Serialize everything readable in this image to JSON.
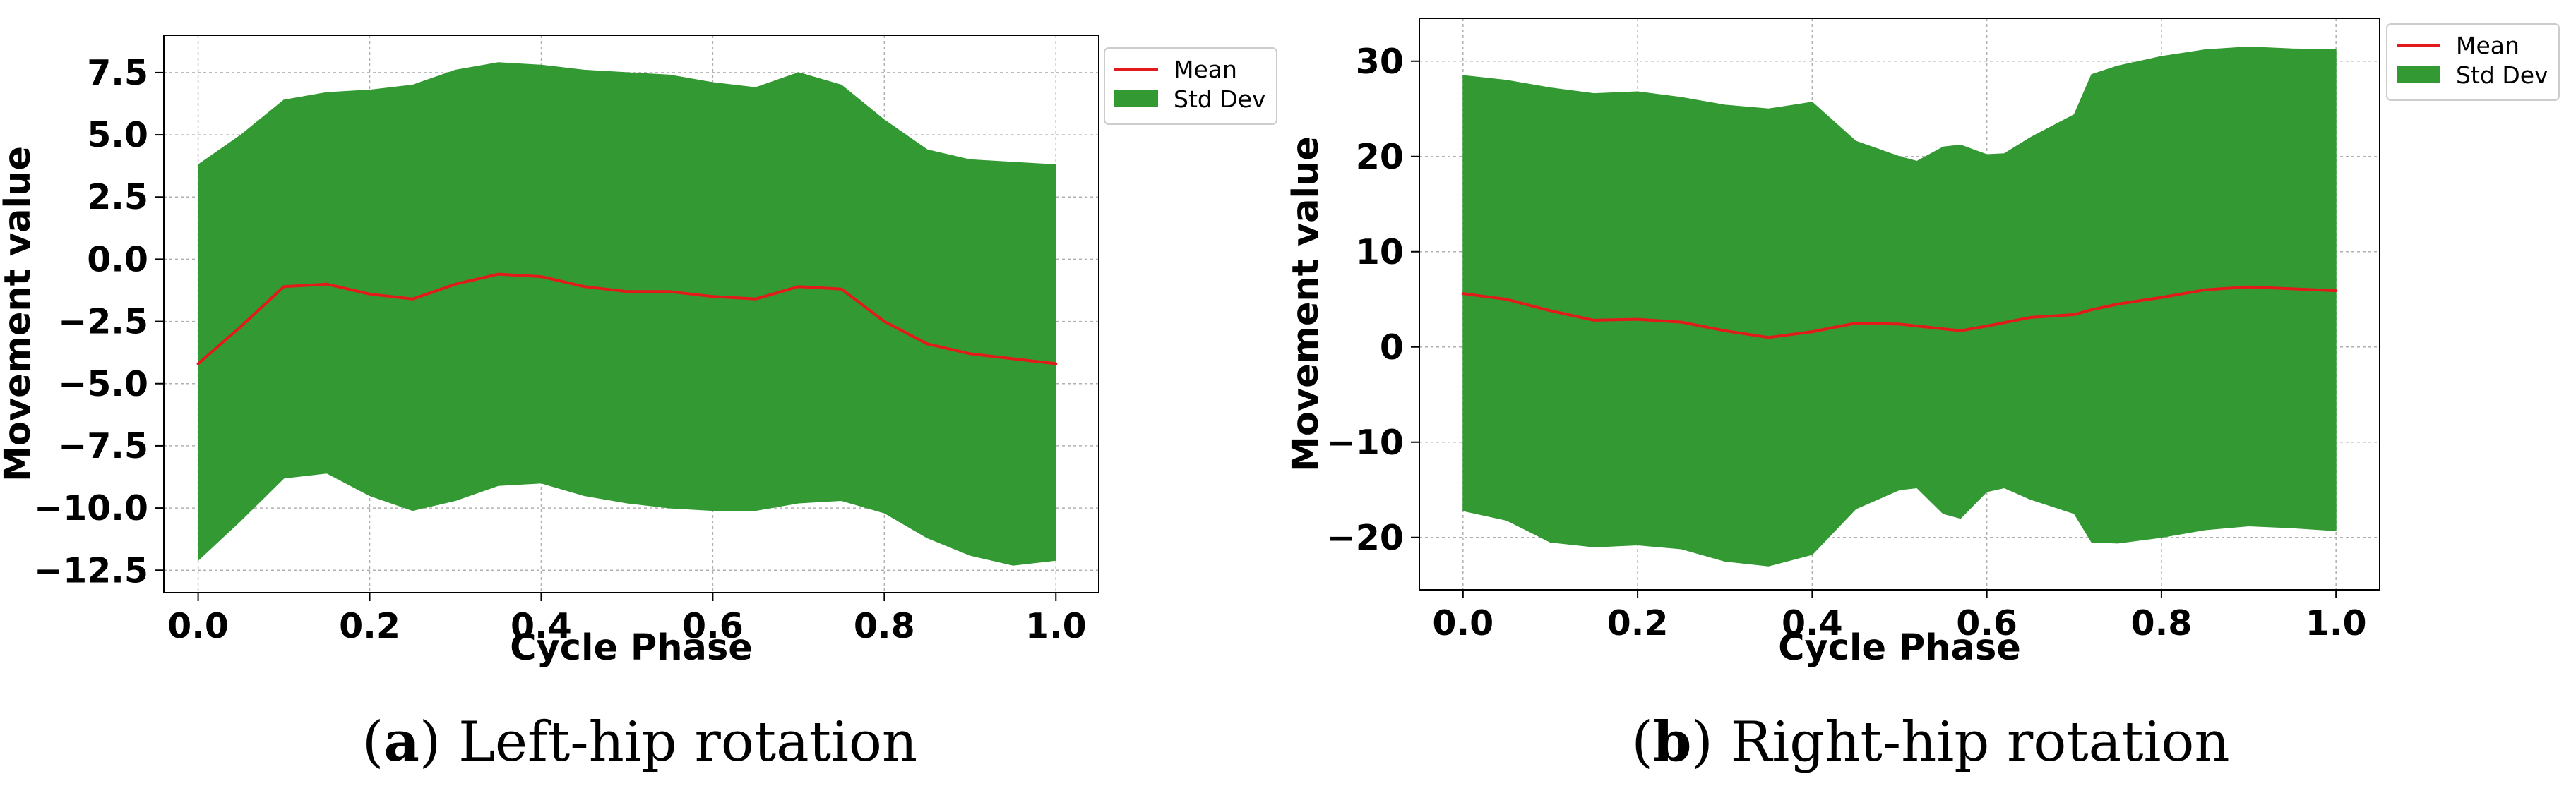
{
  "chart_data": [
    {
      "type": "line",
      "id": "a",
      "panel_letter": "a",
      "caption": "Left-hip rotation",
      "xlabel": "Cycle Phase",
      "ylabel": "Movement value",
      "xlim": [
        -0.04,
        1.05
      ],
      "ylim": [
        -13.4,
        9.0
      ],
      "xticks": [
        0.0,
        0.2,
        0.4,
        0.6,
        0.8,
        1.0
      ],
      "xtick_labels": [
        "0.0",
        "0.2",
        "0.4",
        "0.6",
        "0.8",
        "1.0"
      ],
      "yticks": [
        7.5,
        5.0,
        2.5,
        0.0,
        -2.5,
        -5.0,
        -7.5,
        -10.0,
        -12.5
      ],
      "ytick_labels": [
        "7.5",
        "5.0",
        "2.5",
        "0.0",
        "−2.5",
        "−5.0",
        "−7.5",
        "−10.0",
        "−12.5"
      ],
      "grid": true,
      "legend_position": "upper-right-outside",
      "legend": [
        "Mean",
        "Std Dev"
      ],
      "colors": {
        "mean": "#e31a1c",
        "band": "#339933"
      },
      "series": [
        {
          "name": "Mean",
          "x": [
            0.0,
            0.05,
            0.1,
            0.15,
            0.2,
            0.25,
            0.3,
            0.35,
            0.4,
            0.45,
            0.5,
            0.55,
            0.6,
            0.65,
            0.7,
            0.75,
            0.8,
            0.85,
            0.9,
            0.95,
            1.0
          ],
          "y": [
            -4.2,
            -2.7,
            -1.1,
            -1.0,
            -1.4,
            -1.6,
            -1.0,
            -0.6,
            -0.7,
            -1.1,
            -1.3,
            -1.3,
            -1.5,
            -1.6,
            -1.1,
            -1.2,
            -2.5,
            -3.4,
            -3.8,
            -4.0,
            -4.2
          ]
        },
        {
          "name": "Std Dev",
          "x": [
            0.0,
            0.05,
            0.1,
            0.15,
            0.2,
            0.25,
            0.3,
            0.35,
            0.4,
            0.45,
            0.5,
            0.55,
            0.6,
            0.65,
            0.7,
            0.75,
            0.8,
            0.85,
            0.9,
            0.95,
            1.0
          ],
          "upper": [
            3.8,
            5.0,
            6.4,
            6.7,
            6.8,
            7.0,
            7.6,
            7.9,
            7.8,
            7.6,
            7.5,
            7.4,
            7.1,
            6.9,
            7.5,
            7.0,
            5.6,
            4.4,
            4.0,
            3.9,
            3.8
          ],
          "lower": [
            -12.1,
            -10.5,
            -8.8,
            -8.6,
            -9.5,
            -10.1,
            -9.7,
            -9.1,
            -9.0,
            -9.5,
            -9.8,
            -10.0,
            -10.1,
            -10.1,
            -9.8,
            -9.7,
            -10.2,
            -11.2,
            -11.9,
            -12.3,
            -12.1
          ]
        }
      ]
    },
    {
      "type": "line",
      "id": "b",
      "panel_letter": "b",
      "caption": "Right-hip rotation",
      "xlabel": "Cycle Phase",
      "ylabel": "Movement value",
      "xlim": [
        -0.05,
        1.05
      ],
      "ylim": [
        -25.5,
        34.5
      ],
      "xticks": [
        0.0,
        0.2,
        0.4,
        0.6,
        0.8,
        1.0
      ],
      "xtick_labels": [
        "0.0",
        "0.2",
        "0.4",
        "0.6",
        "0.8",
        "1.0"
      ],
      "yticks": [
        30,
        20,
        10,
        0,
        -10,
        -20
      ],
      "ytick_labels": [
        "30",
        "20",
        "10",
        "0",
        "−10",
        "−20"
      ],
      "grid": true,
      "legend_position": "upper-right-outside",
      "legend": [
        "Mean",
        "Std Dev"
      ],
      "colors": {
        "mean": "#e31a1c",
        "band": "#339933"
      },
      "series": [
        {
          "name": "Mean",
          "x": [
            0.0,
            0.05,
            0.1,
            0.15,
            0.2,
            0.25,
            0.3,
            0.35,
            0.4,
            0.45,
            0.5,
            0.55,
            0.57,
            0.6,
            0.65,
            0.7,
            0.72,
            0.75,
            0.8,
            0.85,
            0.9,
            0.95,
            1.0
          ],
          "y": [
            5.6,
            5.0,
            3.8,
            2.8,
            2.9,
            2.6,
            1.7,
            1.0,
            1.6,
            2.5,
            2.4,
            1.9,
            1.7,
            2.2,
            3.1,
            3.4,
            3.9,
            4.5,
            5.2,
            6.0,
            6.3,
            6.1,
            5.9
          ]
        },
        {
          "name": "Std Dev",
          "x": [
            0.0,
            0.05,
            0.1,
            0.15,
            0.2,
            0.25,
            0.3,
            0.35,
            0.4,
            0.45,
            0.5,
            0.52,
            0.55,
            0.57,
            0.6,
            0.62,
            0.65,
            0.7,
            0.72,
            0.75,
            0.8,
            0.85,
            0.9,
            0.95,
            1.0
          ],
          "upper": [
            28.5,
            28.0,
            27.2,
            26.6,
            26.8,
            26.2,
            25.4,
            25.0,
            25.7,
            21.6,
            20.0,
            19.5,
            21.0,
            21.2,
            20.2,
            20.3,
            22.0,
            24.4,
            28.6,
            29.5,
            30.5,
            31.2,
            31.5,
            31.3,
            31.2
          ],
          "lower": [
            -17.2,
            -18.2,
            -20.5,
            -21.0,
            -20.8,
            -21.2,
            -22.5,
            -23.0,
            -21.8,
            -17.0,
            -15.0,
            -14.8,
            -17.5,
            -18.0,
            -15.2,
            -14.8,
            -16.0,
            -17.5,
            -20.5,
            -20.6,
            -20.0,
            -19.2,
            -18.8,
            -19.0,
            -19.3
          ]
        }
      ]
    }
  ]
}
